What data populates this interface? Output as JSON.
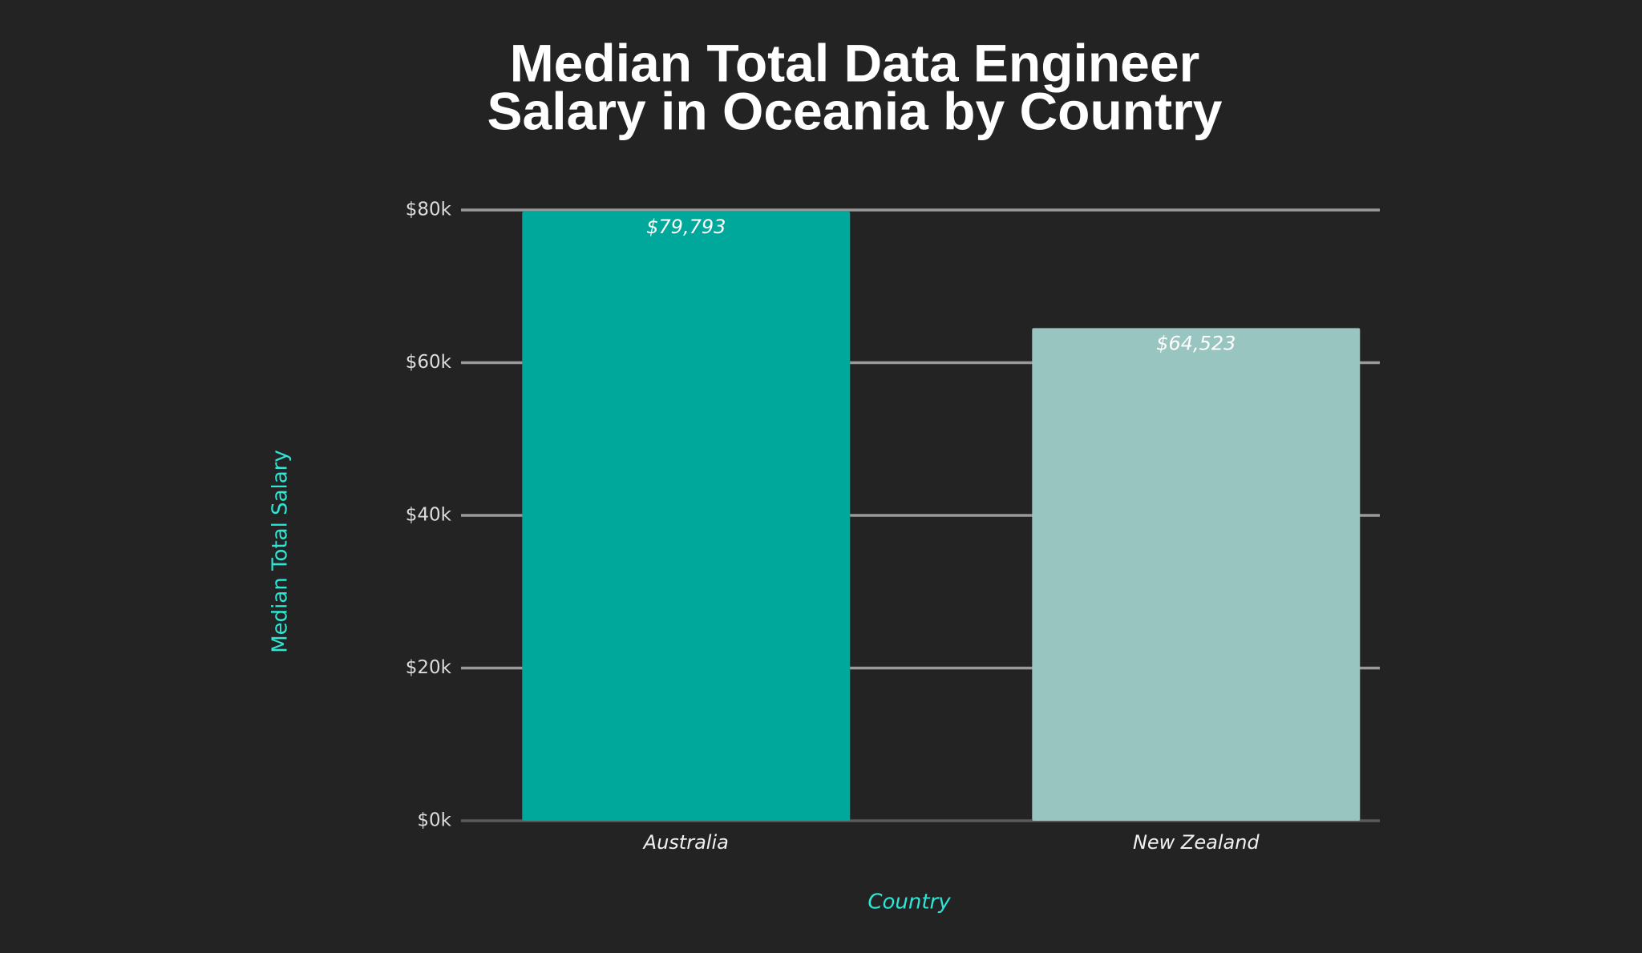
{
  "chart_data": {
    "type": "bar",
    "title": [
      "Median Total Data Engineer",
      "Salary in Oceania by Country"
    ],
    "x_label": "Country",
    "y_label": "Median Total Salary",
    "categories": [
      "Australia",
      "New Zealand"
    ],
    "values": [
      79793,
      64523
    ],
    "value_labels": [
      "$79,793",
      "$64,523"
    ],
    "colors": [
      "#00a79b",
      "#98c5c0"
    ],
    "ylim": [
      0,
      80000
    ],
    "yticks": [
      {
        "value": 0,
        "label": "$0k"
      },
      {
        "value": 20000,
        "label": "$20k"
      },
      {
        "value": 40000,
        "label": "$40k"
      },
      {
        "value": 60000,
        "label": "$60k"
      },
      {
        "value": 80000,
        "label": "$80k"
      }
    ],
    "grid": true
  }
}
